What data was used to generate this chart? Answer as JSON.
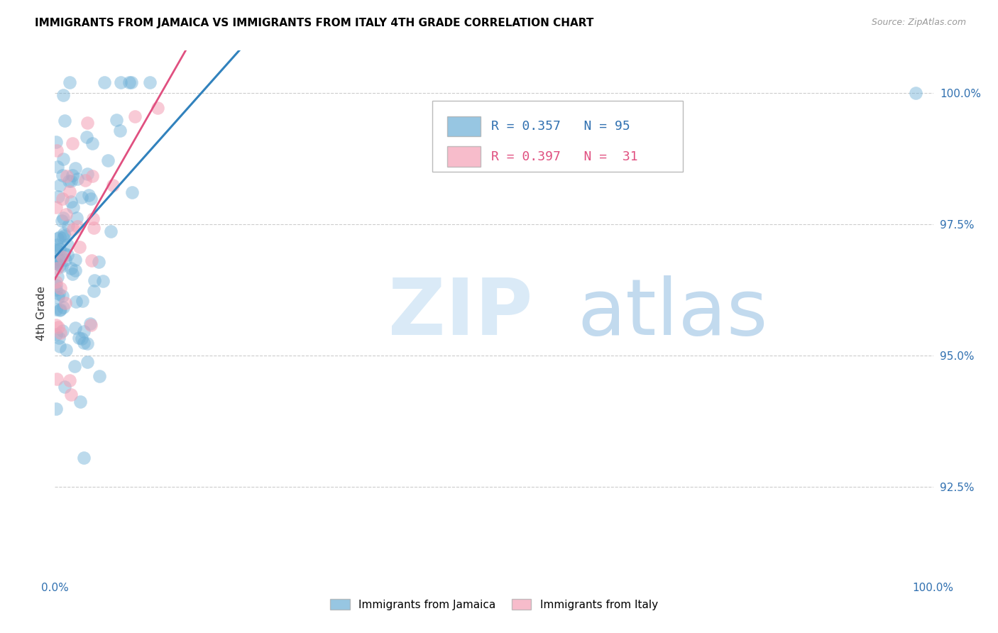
{
  "title": "IMMIGRANTS FROM JAMAICA VS IMMIGRANTS FROM ITALY 4TH GRADE CORRELATION CHART",
  "source": "Source: ZipAtlas.com",
  "ylabel": "4th Grade",
  "ylabel_right_ticks": [
    "100.0%",
    "97.5%",
    "95.0%",
    "92.5%"
  ],
  "ylabel_right_vals": [
    1.0,
    0.975,
    0.95,
    0.925
  ],
  "xlim": [
    0.0,
    1.0
  ],
  "ylim": [
    0.908,
    1.008
  ],
  "r_jamaica": 0.357,
  "n_jamaica": 95,
  "r_italy": 0.397,
  "n_italy": 31,
  "color_jamaica": "#6baed6",
  "color_italy": "#f4a0b5",
  "color_jamaica_line": "#3182bd",
  "color_italy_line": "#e05080",
  "legend_label_jamaica": "Immigrants from Jamaica",
  "legend_label_italy": "Immigrants from Italy"
}
